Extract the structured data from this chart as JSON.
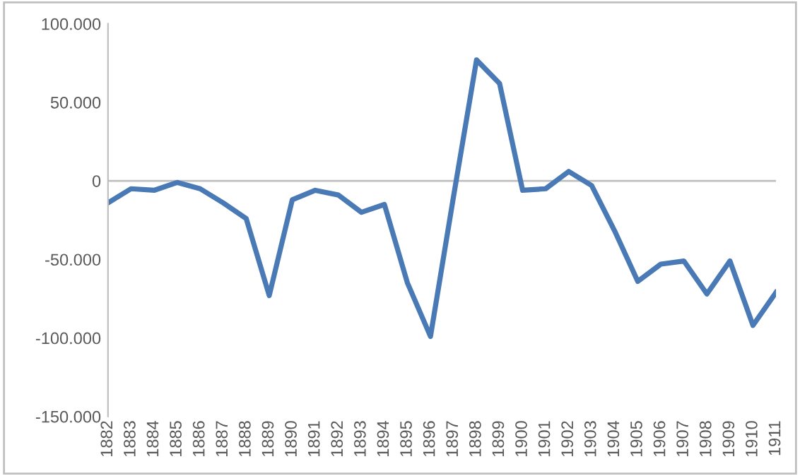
{
  "chart_data": {
    "type": "line",
    "categories": [
      "1882",
      "1883",
      "1884",
      "1885",
      "1886",
      "1887",
      "1888",
      "1889",
      "1890",
      "1891",
      "1892",
      "1893",
      "1894",
      "1895",
      "1896",
      "1897",
      "1898",
      "1899",
      "1900",
      "1901",
      "1902",
      "1903",
      "1904",
      "1905",
      "1906",
      "1907",
      "1908",
      "1909",
      "1910",
      "1911"
    ],
    "series": [
      {
        "color": "#4a7ab6",
        "values": [
          -14000,
          -5000,
          -6000,
          -1000,
          -5000,
          -14000,
          -24000,
          -73000,
          -12000,
          -6000,
          -9000,
          -20000,
          -15000,
          -65000,
          -99000,
          -10000,
          77000,
          62000,
          -6000,
          -5000,
          6000,
          -3000,
          -32000,
          -64000,
          -53000,
          -51000,
          -72000,
          -51000,
          -92000,
          -71000
        ]
      }
    ],
    "ylim": [
      -150000,
      100000
    ],
    "yticks": [
      {
        "value": -150000,
        "label": "-150.000"
      },
      {
        "value": -100000,
        "label": "-100.000"
      },
      {
        "value": -50000,
        "label": "-50.000"
      },
      0,
      {
        "value": 50000,
        "label": "50.000"
      },
      {
        "value": 100000,
        "label": "100.000"
      }
    ],
    "ref_lines": [
      {
        "axis": "y",
        "value": 0,
        "color": "#bfbfbf",
        "line_style": "solid"
      }
    ],
    "grid": false,
    "marker": "none",
    "line_style": "solid"
  }
}
